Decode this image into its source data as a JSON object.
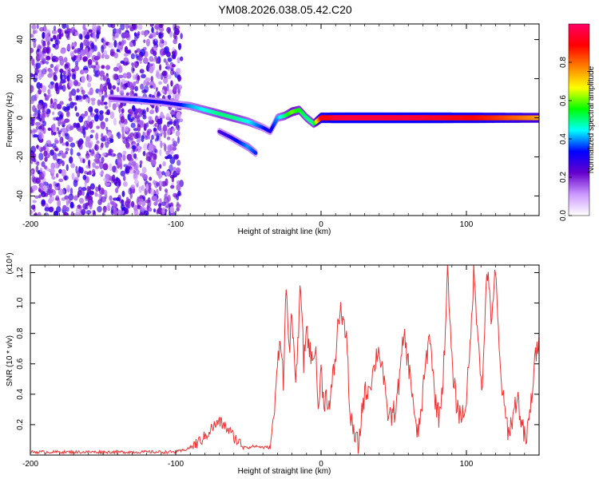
{
  "title": "YM08.2026.038.05.42.C20",
  "chart_data": [
    {
      "type": "heatmap",
      "xlabel": "Height of straight line (km)",
      "ylabel": "Frequency (Hz)",
      "xlim": [
        -200,
        150
      ],
      "ylim": [
        -50,
        48
      ],
      "xticks": [
        -200,
        -100,
        0,
        100
      ],
      "yticks": [
        -40,
        -20,
        0,
        20,
        40
      ],
      "colorbar": {
        "label": "Normalized spectral amplitude",
        "range": [
          0,
          1
        ],
        "ticks": [
          "0.0",
          "0.2",
          "0.4",
          "0.6",
          "0.8"
        ],
        "tick_values": [
          0.0,
          0.2,
          0.4,
          0.6,
          0.8
        ],
        "colors": [
          "#ffffff",
          "#cc99ff",
          "#6600cc",
          "#0000ff",
          "#00ffff",
          "#00ff00",
          "#ffff00",
          "#ff8000",
          "#ff0000",
          "#ff0066"
        ]
      },
      "ridges": [
        {
          "x": [
            -145,
            -125,
            -110,
            -100,
            -90,
            -80,
            -70,
            -60,
            -50,
            -40,
            -35,
            -30,
            -25,
            -20,
            -15,
            -10,
            -5,
            0,
            5,
            10,
            20,
            60,
            100,
            120,
            150
          ],
          "y": [
            10,
            9,
            8,
            7,
            6,
            4,
            2,
            0,
            -2,
            -5,
            -7,
            0,
            1,
            3,
            4,
            0,
            -3,
            0,
            0,
            0,
            0,
            0,
            0,
            0,
            0
          ],
          "amplitude": [
            0.2,
            0.35,
            0.3,
            0.3,
            0.4,
            0.45,
            0.5,
            0.5,
            0.45,
            0.35,
            0.3,
            0.4,
            0.5,
            0.6,
            0.55,
            0.5,
            0.5,
            0.9,
            0.9,
            0.95,
            0.95,
            0.95,
            0.9,
            0.85,
            0.75
          ]
        },
        {
          "x": [
            -70,
            -62,
            -55,
            -50,
            -45
          ],
          "y": [
            -7,
            -10,
            -13,
            -15,
            -18
          ],
          "amplitude": [
            0.25,
            0.3,
            0.35,
            0.4,
            0.35
          ]
        }
      ],
      "noise_band_x": [
        -200,
        -100
      ]
    },
    {
      "type": "line",
      "xlabel": "Height of straight line (km)",
      "ylabel": "SNR (10 * v/v)",
      "scale_label": "(x10⁴)",
      "xlim": [
        -200,
        150
      ],
      "ylim": [
        0,
        1.25
      ],
      "xticks": [
        -200,
        -100,
        0,
        100
      ],
      "yticks": [
        0.2,
        0.4,
        0.6,
        0.8,
        1.0,
        1.2
      ],
      "series": [
        {
          "color": "#ee3333",
          "x": [
            -200,
            -150,
            -110,
            -100,
            -95,
            -90,
            -85,
            -80,
            -75,
            -70,
            -65,
            -60,
            -55,
            -50,
            -45,
            -40,
            -35,
            -32,
            -30,
            -28,
            -26,
            -24,
            -22,
            -20,
            -18,
            -16,
            -14,
            -12,
            -10,
            -8,
            -6,
            -4,
            -2,
            0,
            2,
            4,
            6,
            8,
            10,
            12,
            14,
            16,
            18,
            20,
            22,
            24,
            26,
            28,
            30,
            33,
            36,
            39,
            42,
            45,
            48,
            51,
            54,
            57,
            60,
            63,
            66,
            69,
            72,
            75,
            78,
            81,
            84,
            87,
            90,
            93,
            96,
            99,
            102,
            105,
            108,
            111,
            114,
            117,
            120,
            123,
            126,
            129,
            132,
            135,
            138,
            141,
            144,
            147,
            150
          ],
          "y": [
            0.02,
            0.02,
            0.02,
            0.02,
            0.03,
            0.05,
            0.08,
            0.12,
            0.18,
            0.22,
            0.18,
            0.12,
            0.07,
            0.05,
            0.06,
            0.05,
            0.05,
            0.3,
            0.6,
            0.8,
            0.5,
            1.1,
            0.7,
            0.9,
            0.5,
            0.7,
            1.15,
            0.6,
            0.85,
            0.7,
            0.6,
            0.75,
            0.3,
            0.55,
            0.35,
            0.4,
            0.3,
            0.5,
            0.65,
            0.9,
            0.95,
            0.85,
            0.7,
            0.25,
            0.15,
            0.1,
            0.05,
            0.3,
            0.4,
            0.45,
            0.55,
            0.7,
            0.6,
            0.3,
            0.25,
            0.3,
            0.5,
            0.8,
            0.6,
            0.4,
            0.1,
            0.3,
            0.6,
            0.8,
            0.4,
            0.25,
            0.5,
            1.2,
            0.6,
            0.35,
            0.25,
            0.3,
            0.6,
            1.2,
            0.8,
            0.4,
            1.25,
            0.9,
            1.2,
            0.6,
            0.3,
            0.15,
            0.25,
            0.4,
            0.2,
            0.08,
            0.3,
            0.6,
            0.8
          ]
        }
      ]
    }
  ]
}
